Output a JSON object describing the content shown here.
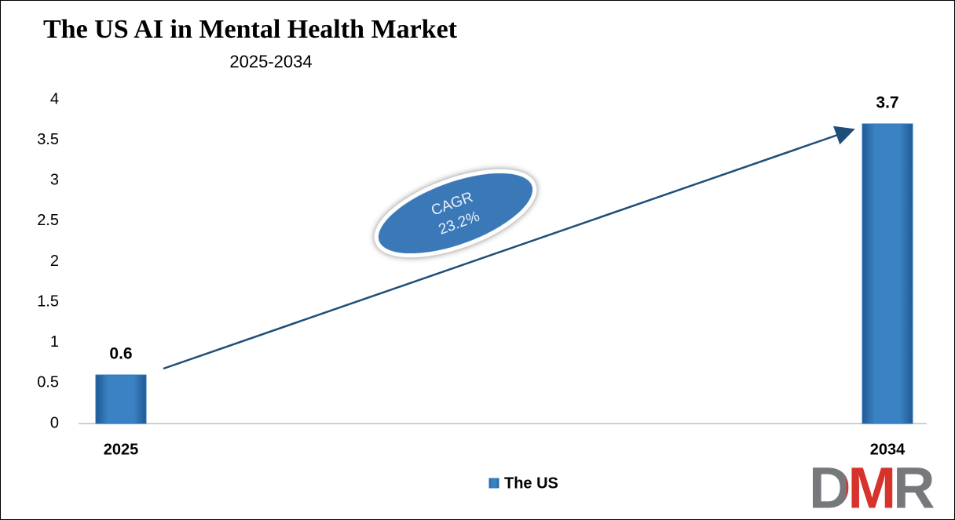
{
  "chart_data": {
    "type": "bar",
    "title": "The US AI in Mental Health Market",
    "subtitle": "2025-2034",
    "categories": [
      "2025",
      "2034"
    ],
    "series": [
      {
        "name": "The US",
        "color": "#2e75b6",
        "values": [
          0.6,
          3.7
        ]
      }
    ],
    "ylim": [
      0,
      4
    ],
    "yticks": [
      0,
      0.5,
      1,
      1.5,
      2,
      2.5,
      3,
      3.5,
      4
    ],
    "legend": "bottom",
    "annotation": {
      "label": "CAGR",
      "value": "23.2%"
    },
    "logo": "DMR"
  }
}
